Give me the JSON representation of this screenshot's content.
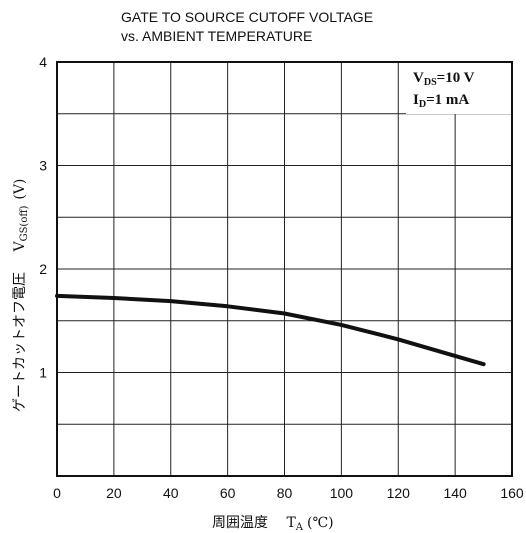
{
  "chart_data": {
    "type": "line",
    "title_line1": "GATE TO SOURCE CUTOFF VOLTAGE",
    "title_line2": "vs. AMBIENT TEMPERATURE",
    "xlabel": "周囲温度",
    "xlabel_symbol": "T",
    "xlabel_symbol_sub": "A",
    "xlabel_unit": "(℃)",
    "ylabel": "ゲートカットオフ電圧",
    "ylabel_symbol": "V",
    "ylabel_symbol_sub": "GS(off)",
    "ylabel_unit": "(V)",
    "xlim": [
      0,
      160
    ],
    "ylim": [
      0,
      4
    ],
    "x_ticks": [
      0,
      20,
      40,
      60,
      80,
      100,
      120,
      140,
      160
    ],
    "y_ticks": [
      1,
      2,
      3,
      4
    ],
    "grid": true,
    "annotations": [
      {
        "main": "V",
        "sub": "DS",
        "value": "=10 V"
      },
      {
        "main": "I",
        "sub": "D",
        "value": "=1 mA"
      }
    ],
    "series": [
      {
        "x": [
          0,
          20,
          40,
          60,
          80,
          100,
          120,
          140,
          150
        ],
        "y": [
          1.74,
          1.72,
          1.69,
          1.64,
          1.57,
          1.46,
          1.32,
          1.16,
          1.08
        ]
      }
    ]
  }
}
